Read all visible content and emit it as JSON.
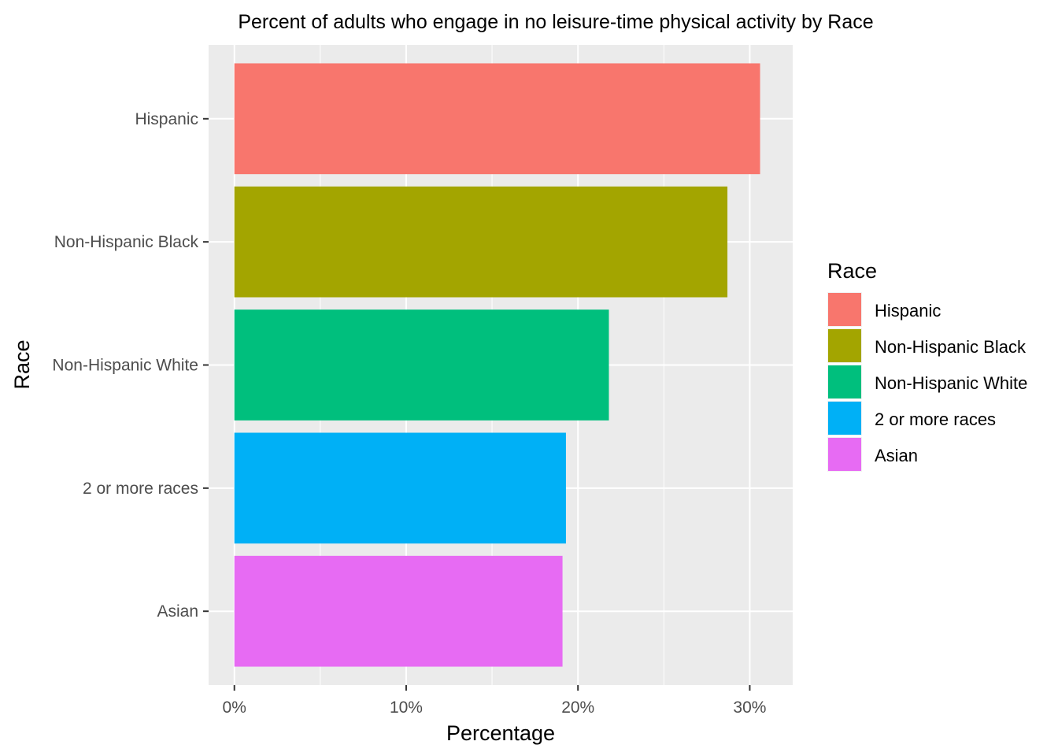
{
  "chart_data": {
    "type": "bar",
    "orientation": "horizontal",
    "title": "Percent of adults who engage in no leisure-time physical activity by Race",
    "xlabel": "Percentage",
    "ylabel": "Race",
    "categories": [
      "Hispanic",
      "Non-Hispanic Black",
      "Non-Hispanic White",
      "2 or more races",
      "Asian"
    ],
    "values": [
      30.6,
      28.7,
      21.8,
      19.3,
      19.1
    ],
    "colors": [
      "#F8766D",
      "#A3A500",
      "#00BF7D",
      "#00B0F6",
      "#E76BF3"
    ],
    "xlim": [
      -1.5,
      32.5
    ],
    "xticks": [
      0,
      10,
      20,
      30
    ],
    "xtick_labels": [
      "0%",
      "10%",
      "20%",
      "30%"
    ],
    "grid": true,
    "panel_background": "#EBEBEB",
    "legend": {
      "title": "Race",
      "placement": "right",
      "entries": [
        "Hispanic",
        "Non-Hispanic Black",
        "Non-Hispanic White",
        "2 or more races",
        "Asian"
      ]
    }
  }
}
